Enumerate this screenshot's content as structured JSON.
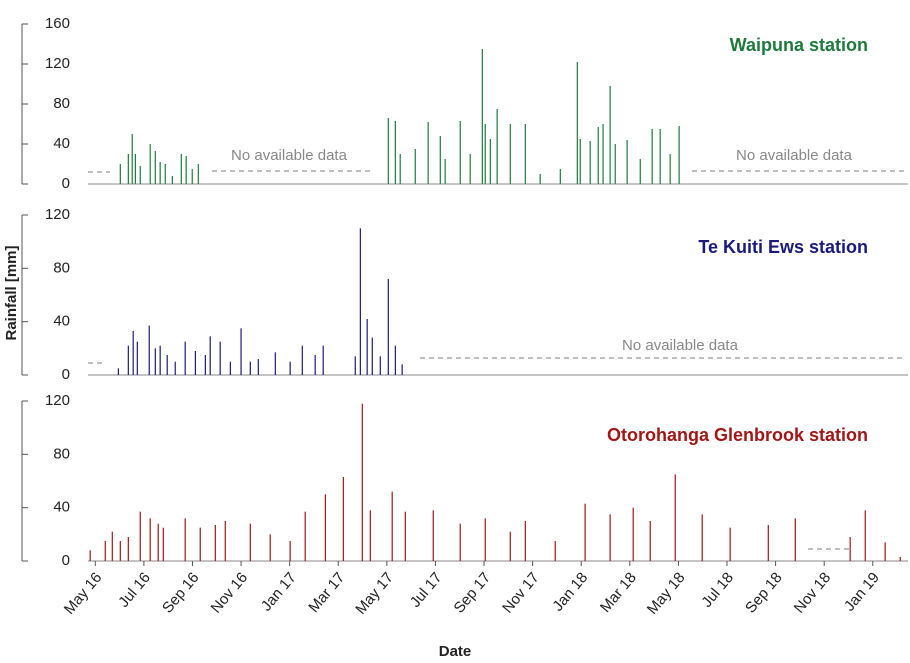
{
  "chart_data": [
    {
      "type": "bar",
      "title": "Waipuna station",
      "color": "#1d7b3c",
      "x": [
        1.03,
        1.36,
        1.52,
        1.65,
        1.85,
        2.26,
        2.47,
        2.67,
        2.88,
        3.17,
        3.54,
        3.74,
        3.99,
        4.24,
        12.06,
        12.35,
        12.55,
        13.17,
        13.7,
        14.2,
        14.4,
        15.02,
        15.43,
        15.93,
        16.05,
        16.26,
        16.54,
        17.08,
        17.7,
        18.31,
        19.14,
        19.84,
        19.96,
        20.37,
        20.7,
        20.9,
        21.19,
        21.4,
        21.89,
        22.43,
        22.92,
        23.25,
        23.66,
        24.03
      ],
      "values": [
        20,
        30,
        50,
        30,
        18,
        40,
        33,
        22,
        20,
        8,
        30,
        28,
        15,
        20,
        66,
        63,
        30,
        35,
        62,
        48,
        25,
        63,
        30,
        135,
        60,
        45,
        75,
        60,
        60,
        10,
        15,
        122,
        45,
        43,
        57,
        60,
        98,
        40,
        44,
        25,
        55,
        55,
        30,
        58
      ],
      "xlim": [
        -0.3,
        33.45
      ],
      "ylim": [
        0,
        160
      ],
      "yticks": [
        0,
        40,
        80,
        120,
        160
      ],
      "annotations": [
        "No available data",
        "No available data"
      ]
    },
    {
      "type": "bar",
      "title": "Te Kuiti Ews station",
      "color": "#1a1a7e",
      "ylabel": "Rainfall [mm]",
      "x": [
        0.95,
        1.36,
        1.56,
        1.73,
        2.22,
        2.47,
        2.67,
        2.96,
        3.29,
        3.7,
        4.12,
        4.53,
        4.73,
        5.14,
        5.56,
        6.0,
        6.38,
        6.71,
        7.41,
        8.02,
        8.52,
        9.05,
        9.38,
        10.7,
        10.91,
        11.19,
        11.4,
        11.73,
        12.06,
        12.35,
        12.63
      ],
      "values": [
        5,
        22,
        33,
        25,
        37,
        20,
        22,
        15,
        10,
        25,
        18,
        15,
        29,
        25,
        10,
        35,
        10,
        12,
        17,
        10,
        22,
        15,
        22,
        14,
        110,
        42,
        28,
        14,
        72,
        22,
        8
      ],
      "xlim": [
        -0.3,
        33.45
      ],
      "ylim": [
        0,
        120
      ],
      "yticks": [
        0,
        40,
        80,
        120
      ],
      "annotations": [
        "No available data"
      ]
    },
    {
      "type": "bar",
      "title": "Otorohanga Glenbrook station",
      "color": "#a31616",
      "xlabel": "Date",
      "x": [
        -0.21,
        0.41,
        0.7,
        1.03,
        1.36,
        1.85,
        2.26,
        2.59,
        2.8,
        3.7,
        4.32,
        4.94,
        5.35,
        6.38,
        7.2,
        8.02,
        8.64,
        9.47,
        10.21,
        10.99,
        11.32,
        12.22,
        12.76,
        13.91,
        15.02,
        16.05,
        17.08,
        17.7,
        18.93,
        20.16,
        21.19,
        22.14,
        22.84,
        23.87,
        24.98,
        26.13,
        27.7,
        28.81,
        31.07,
        31.69,
        32.51,
        33.13
      ],
      "values": [
        8,
        15,
        22,
        15,
        18,
        37,
        32,
        28,
        25,
        32,
        25,
        27,
        30,
        28,
        20,
        15,
        37,
        50,
        63,
        118,
        38,
        52,
        37,
        38,
        28,
        32,
        22,
        30,
        15,
        43,
        35,
        40,
        30,
        65,
        35,
        25,
        27,
        32,
        18,
        38,
        14,
        3
      ],
      "xlim": [
        -0.3,
        33.45
      ],
      "ylim": [
        0,
        120
      ],
      "yticks": [
        0,
        40,
        80,
        120
      ],
      "xticks": [
        {
          "value": 0,
          "label": "May 16"
        },
        {
          "value": 2,
          "label": "Jul 16"
        },
        {
          "value": 4,
          "label": "Sep 16"
        },
        {
          "value": 6,
          "label": "Nov 16"
        },
        {
          "value": 8,
          "label": "Jan 17"
        },
        {
          "value": 10,
          "label": "Mar 17"
        },
        {
          "value": 12,
          "label": "May 17"
        },
        {
          "value": 14,
          "label": "Jul 17"
        },
        {
          "value": 16,
          "label": "Sep 17"
        },
        {
          "value": 18,
          "label": "Nov 17"
        },
        {
          "value": 20,
          "label": "Jan 18"
        },
        {
          "value": 22,
          "label": "Mar 18"
        },
        {
          "value": 24,
          "label": "May 18"
        },
        {
          "value": 26,
          "label": "Jul 18"
        },
        {
          "value": 28,
          "label": "Sep 18"
        },
        {
          "value": 30,
          "label": "Nov 18"
        },
        {
          "value": 32,
          "label": "Jan 19"
        }
      ]
    }
  ]
}
